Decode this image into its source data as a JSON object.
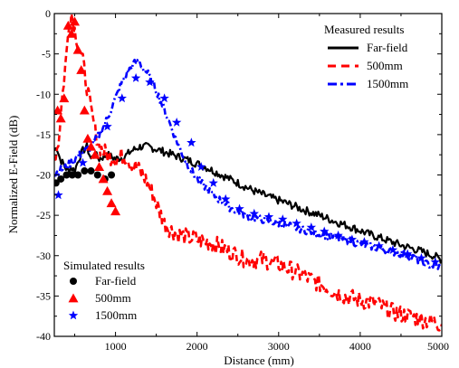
{
  "chart_data": {
    "type": "line",
    "title": "",
    "xlabel": "Distance (mm)",
    "ylabel": "Normalized E-Field (dB)",
    "xlim": [
      250,
      5000
    ],
    "ylim": [
      -40,
      0
    ],
    "xticks": [
      1000,
      2000,
      3000,
      4000,
      5000
    ],
    "xtick_labels": [
      "1000",
      "2000",
      "3000",
      "4000",
      "5000"
    ],
    "yticks": [
      0,
      -5,
      -10,
      -15,
      -20,
      -25,
      -30,
      -35,
      -40
    ],
    "ytick_labels": [
      "0",
      "-5",
      "-10",
      "-15",
      "-20",
      "-25",
      "-30",
      "-35",
      "-40"
    ],
    "grid": false,
    "legends": [
      {
        "title": "Measured results",
        "placement": "top-right",
        "entries": [
          {
            "label": "Far-field",
            "style": "solid",
            "color": "#000000"
          },
          {
            "label": "500mm",
            "style": "dashed",
            "color": "#ff0000"
          },
          {
            "label": "1500mm",
            "style": "dashdot",
            "color": "#0000ff"
          }
        ]
      },
      {
        "title": "Simulated results",
        "placement": "bottom-left",
        "entries": [
          {
            "label": "Far-field",
            "marker": "circle",
            "color": "#000000"
          },
          {
            "label": "500mm",
            "marker": "triangle",
            "color": "#ff0000"
          },
          {
            "label": "1500mm",
            "marker": "star",
            "color": "#0000ff"
          }
        ]
      }
    ],
    "series": [
      {
        "name": "Far-field",
        "group": "Measured results",
        "kind": "line",
        "style": "solid",
        "color": "#000000",
        "noise": 0.5,
        "x": [
          250,
          280,
          320,
          380,
          420,
          450,
          500,
          550,
          600,
          650,
          700,
          750,
          800,
          900,
          1000,
          1100,
          1200,
          1300,
          1400,
          1500,
          1700,
          1900,
          2100,
          2300,
          2500,
          2700,
          2900,
          3100,
          3300,
          3500,
          3700,
          3900,
          4100,
          4300,
          4500,
          4700,
          4900,
          5000
        ],
        "y": [
          -17,
          -16.5,
          -18,
          -19,
          -19.5,
          -19,
          -19.5,
          -18,
          -17,
          -16.5,
          -18,
          -17.5,
          -18,
          -17.5,
          -18,
          -17.8,
          -17,
          -16.5,
          -16.5,
          -16.8,
          -17.5,
          -18.2,
          -19,
          -20,
          -21,
          -22,
          -22.8,
          -23.5,
          -24.3,
          -25,
          -25.8,
          -26.5,
          -27.3,
          -28,
          -28.7,
          -29.3,
          -30,
          -30.5
        ]
      },
      {
        "name": "500mm",
        "group": "Measured results",
        "kind": "line",
        "style": "dashed",
        "color": "#ff0000",
        "noise": 1.1,
        "x": [
          250,
          300,
          350,
          400,
          430,
          460,
          500,
          550,
          600,
          650,
          700,
          750,
          800,
          900,
          1000,
          1100,
          1200,
          1300,
          1400,
          1500,
          1600,
          1700,
          1800,
          2000,
          2200,
          2400,
          2600,
          2800,
          3000,
          3200,
          3400,
          3600,
          3800,
          4000,
          4200,
          4400,
          4600,
          4800,
          5000
        ],
        "y": [
          -18,
          -16,
          -10,
          -5,
          -1,
          0,
          -2,
          -4,
          -6,
          -9,
          -12,
          -14.5,
          -16.5,
          -17.5,
          -18,
          -17.5,
          -18.5,
          -19.5,
          -21,
          -23.5,
          -26,
          -27,
          -27.5,
          -28,
          -28.5,
          -29.5,
          -30.5,
          -30.5,
          -31,
          -32,
          -33,
          -34,
          -35,
          -35.5,
          -36,
          -37,
          -37.5,
          -38,
          -38.5
        ]
      },
      {
        "name": "1500mm",
        "group": "Measured results",
        "kind": "line",
        "style": "dashdot",
        "color": "#0000ff",
        "noise": 0.5,
        "x": [
          250,
          300,
          400,
          500,
          600,
          700,
          800,
          900,
          1000,
          1100,
          1200,
          1250,
          1300,
          1400,
          1500,
          1600,
          1700,
          1800,
          1900,
          2000,
          2200,
          2400,
          2600,
          2800,
          3000,
          3200,
          3400,
          3600,
          3800,
          4000,
          4200,
          4400,
          4600,
          4800,
          5000
        ],
        "y": [
          -20,
          -19.5,
          -19,
          -18,
          -17.2,
          -16.5,
          -15,
          -13,
          -10.5,
          -8,
          -6.5,
          -6,
          -6.2,
          -7.5,
          -9.5,
          -12,
          -14.5,
          -17,
          -19,
          -20.5,
          -22.5,
          -24,
          -25,
          -25.5,
          -26,
          -26.5,
          -27,
          -27.5,
          -28,
          -28.5,
          -29,
          -29.5,
          -30,
          -31,
          -31.5
        ]
      },
      {
        "name": "Far-field",
        "group": "Simulated results",
        "kind": "scatter",
        "marker": "circle",
        "color": "#000000",
        "x": [
          270,
          330,
          400,
          470,
          540,
          620,
          700,
          780,
          870,
          950
        ],
        "y": [
          -21,
          -20.5,
          -20,
          -20,
          -20,
          -19.5,
          -19.5,
          -20,
          -20.5,
          -20
        ]
      },
      {
        "name": "500mm",
        "group": "Simulated results",
        "kind": "scatter",
        "marker": "triangle",
        "color": "#ff0000",
        "x": [
          290,
          330,
          370,
          420,
          460,
          500,
          540,
          580,
          620,
          660,
          700,
          750,
          800,
          850,
          900,
          950,
          1000
        ],
        "y": [
          -12,
          -13,
          -10.5,
          -1.5,
          -2.5,
          -1,
          -4.5,
          -7,
          -12,
          -15.5,
          -16.5,
          -17.5,
          -19,
          -20.5,
          -22,
          -23.5,
          -24.5
        ]
      },
      {
        "name": "1500mm",
        "group": "Simulated results",
        "kind": "scatter",
        "marker": "star",
        "color": "#0000ff",
        "x": [
          300,
          600,
          900,
          1080,
          1250,
          1420,
          1600,
          1750,
          1930,
          2050,
          2200,
          2350,
          2520,
          2700,
          2880,
          3050,
          3220,
          3400,
          3560,
          3730,
          3900,
          4050,
          4230,
          4400,
          4580,
          4750,
          4920
        ],
        "y": [
          -22.5,
          -18.5,
          -14,
          -10.5,
          -8,
          -8.5,
          -10.5,
          -13.5,
          -16,
          -19,
          -21,
          -23,
          -24.2,
          -24.8,
          -25.2,
          -25.5,
          -26,
          -26.5,
          -27,
          -27.5,
          -28,
          -28.3,
          -28.8,
          -29.3,
          -29.8,
          -30.3,
          -30.8
        ]
      }
    ]
  }
}
